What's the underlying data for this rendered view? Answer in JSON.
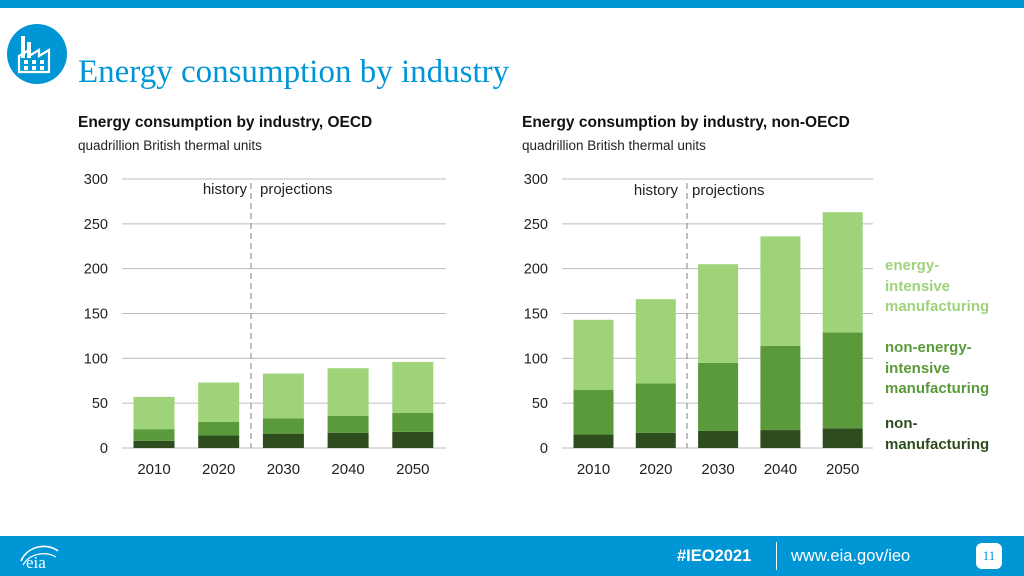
{
  "header": {
    "title": "Energy consumption by industry"
  },
  "icons": {
    "logo": "factory-icon",
    "footer_logo": "eia-logo-icon"
  },
  "colors": {
    "accent": "#0096d6",
    "non_manufacturing": "#2e4d1e",
    "non_energy_intensive": "#5a9a3a",
    "energy_intensive": "#9fd37a"
  },
  "chart_data": [
    {
      "type": "bar",
      "stacked": true,
      "title": "Energy consumption by industry, OECD",
      "ylabel": "quadrillion British thermal units",
      "xlabel": "",
      "categories": [
        "2010",
        "2020",
        "2030",
        "2040",
        "2050"
      ],
      "yticks": [
        "0",
        "50",
        "100",
        "150",
        "200",
        "250",
        "300"
      ],
      "ylim": [
        0,
        300
      ],
      "grid": true,
      "history_label": "history",
      "projection_label": "projections",
      "series": [
        {
          "name": "non-manufacturing",
          "values": [
            8,
            14,
            16,
            17,
            18
          ]
        },
        {
          "name": "non-energy-intensive manufacturing",
          "values": [
            13,
            15,
            17,
            19,
            21
          ]
        },
        {
          "name": "energy-intensive manufacturing",
          "values": [
            36,
            44,
            50,
            53,
            57
          ]
        }
      ]
    },
    {
      "type": "bar",
      "stacked": true,
      "title": "Energy consumption by industry, non-OECD",
      "ylabel": "quadrillion British thermal units",
      "xlabel": "",
      "categories": [
        "2010",
        "2020",
        "2030",
        "2040",
        "2050"
      ],
      "yticks": [
        "0",
        "50",
        "100",
        "150",
        "200",
        "250",
        "300"
      ],
      "ylim": [
        0,
        300
      ],
      "grid": true,
      "history_label": "history",
      "projection_label": "projections",
      "series": [
        {
          "name": "non-manufacturing",
          "values": [
            15,
            17,
            19,
            20,
            22
          ]
        },
        {
          "name": "non-energy-intensive manufacturing",
          "values": [
            50,
            55,
            76,
            94,
            107
          ]
        },
        {
          "name": "energy-intensive manufacturing",
          "values": [
            78,
            94,
            110,
            122,
            134
          ]
        }
      ]
    }
  ],
  "legend": {
    "energy_intensive": [
      "energy-",
      "intensive",
      "manufacturing"
    ],
    "non_energy_intensive": [
      "non-energy-",
      "intensive",
      "manufacturing"
    ],
    "non_manufacturing": [
      "non-",
      "manufacturing"
    ]
  },
  "footer": {
    "hashtag": "#IEO2021",
    "url": "www.eia.gov/ieo",
    "page": "11",
    "logo_text": "eia"
  }
}
